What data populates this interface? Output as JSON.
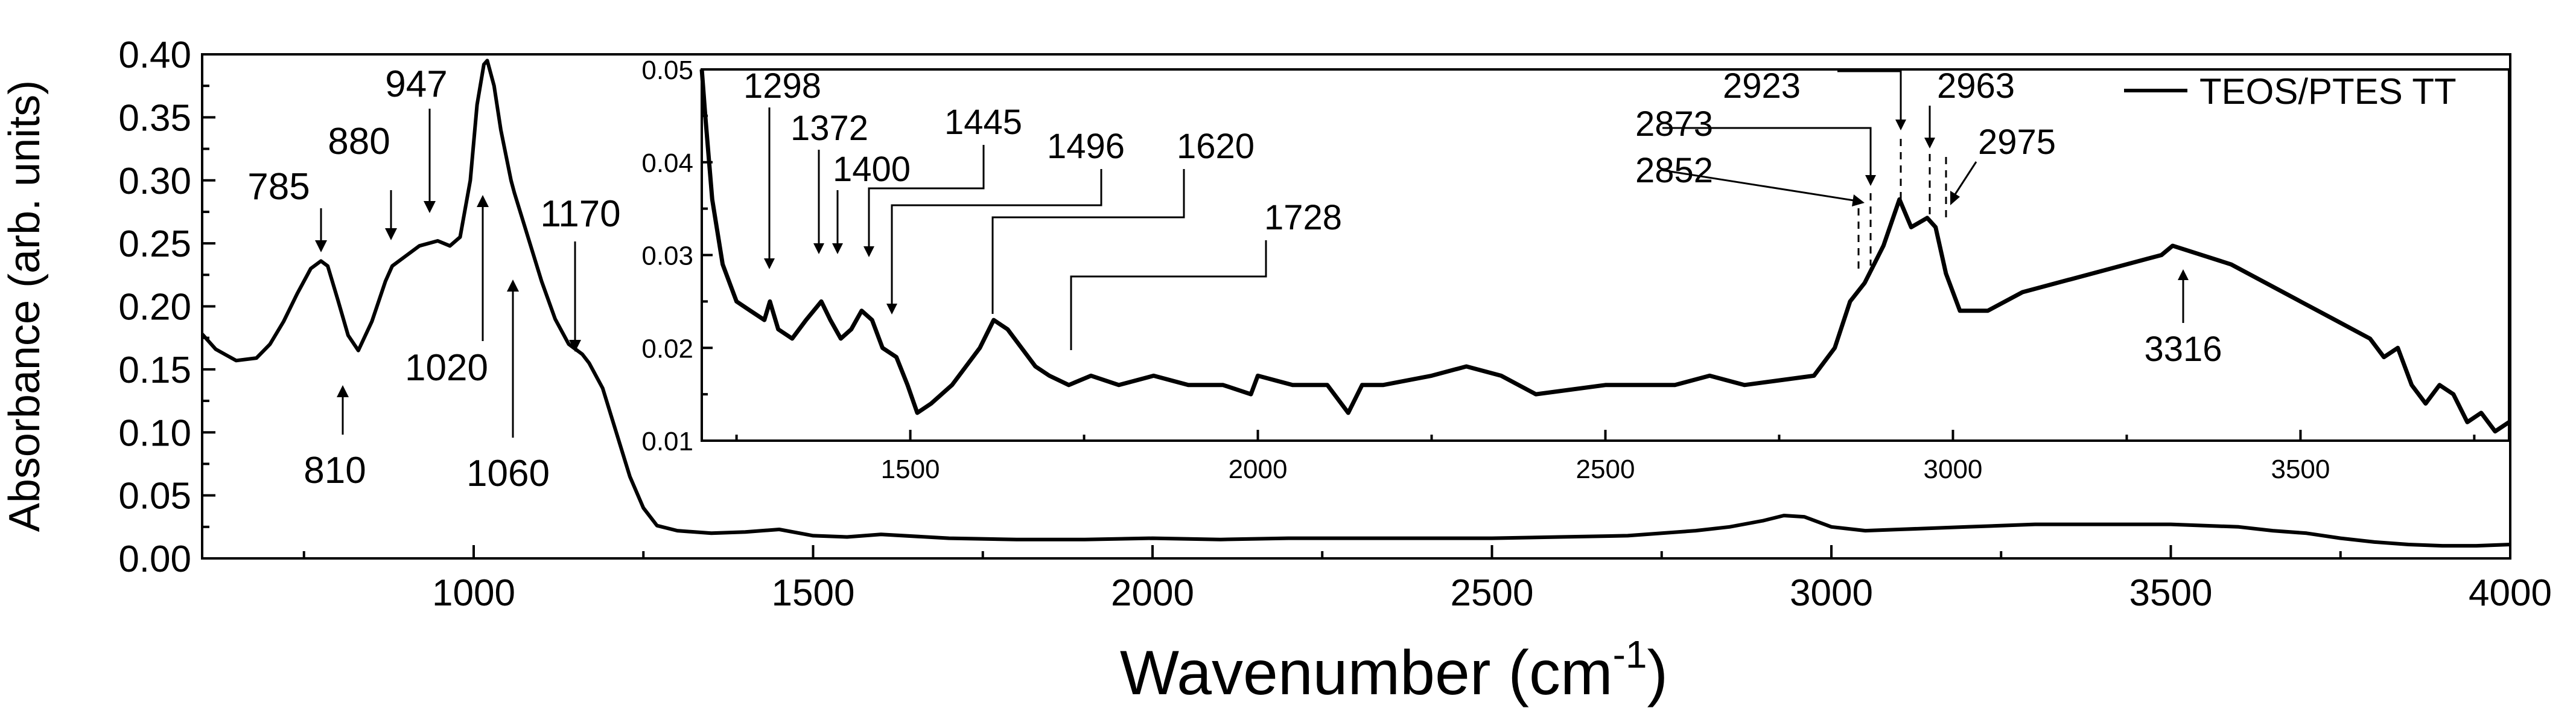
{
  "chart_data": {
    "type": "line",
    "xlabel": "Wavenumber (cm",
    "xlabel_sup": "-1",
    "xlabel_end": ")",
    "ylabel": "Absorbance (arb. units)",
    "xlim": [
      600,
      4000
    ],
    "ylim": [
      0.0,
      0.4
    ],
    "xticks": [
      "1000",
      "1500",
      "2000",
      "2500",
      "3000",
      "3500",
      "4000"
    ],
    "yticks": [
      "0.00",
      "0.05",
      "0.10",
      "0.15",
      "0.20",
      "0.25",
      "0.30",
      "0.35",
      "0.40"
    ],
    "legend": {
      "position": "top-right",
      "label": "TEOS/PTES TT"
    },
    "series": [
      {
        "name": "TEOS/PTES TT",
        "x": [
          600,
          620,
          650,
          680,
          700,
          720,
          740,
          760,
          775,
          785,
          800,
          815,
          830,
          850,
          870,
          880,
          900,
          920,
          947,
          965,
          980,
          995,
          1005,
          1015,
          1020,
          1030,
          1040,
          1055,
          1060,
          1080,
          1100,
          1120,
          1140,
          1160,
          1170,
          1190,
          1210,
          1230,
          1250,
          1270,
          1300,
          1350,
          1400,
          1450,
          1500,
          1550,
          1600,
          1700,
          1800,
          1900,
          2000,
          2100,
          2200,
          2300,
          2400,
          2500,
          2600,
          2700,
          2800,
          2850,
          2900,
          2930,
          2960,
          3000,
          3050,
          3100,
          3200,
          3300,
          3400,
          3500,
          3600,
          3650,
          3700,
          3750,
          3800,
          3850,
          3900,
          3950,
          4000
        ],
        "y": [
          0.178,
          0.166,
          0.157,
          0.159,
          0.17,
          0.188,
          0.21,
          0.23,
          0.236,
          0.232,
          0.205,
          0.177,
          0.165,
          0.188,
          0.22,
          0.232,
          0.24,
          0.248,
          0.252,
          0.248,
          0.255,
          0.3,
          0.36,
          0.392,
          0.395,
          0.375,
          0.34,
          0.3,
          0.29,
          0.255,
          0.22,
          0.19,
          0.17,
          0.162,
          0.155,
          0.135,
          0.1,
          0.065,
          0.04,
          0.026,
          0.022,
          0.02,
          0.021,
          0.023,
          0.018,
          0.017,
          0.019,
          0.016,
          0.015,
          0.015,
          0.016,
          0.015,
          0.016,
          0.016,
          0.016,
          0.016,
          0.017,
          0.018,
          0.022,
          0.025,
          0.03,
          0.034,
          0.033,
          0.025,
          0.022,
          0.023,
          0.025,
          0.027,
          0.027,
          0.027,
          0.025,
          0.022,
          0.02,
          0.016,
          0.013,
          0.011,
          0.01,
          0.01,
          0.011
        ]
      }
    ],
    "annotations": [
      {
        "label": "785",
        "x": 785
      },
      {
        "label": "810",
        "x": 810
      },
      {
        "label": "880",
        "x": 880
      },
      {
        "label": "947",
        "x": 947
      },
      {
        "label": "1020",
        "x": 1020
      },
      {
        "label": "1060",
        "x": 1060
      },
      {
        "label": "1170",
        "x": 1170
      }
    ],
    "inset": {
      "type": "line",
      "xlim": [
        1200,
        3800
      ],
      "ylim": [
        0.01,
        0.05
      ],
      "xticks": [
        "1500",
        "2000",
        "2500",
        "3000",
        "3500"
      ],
      "yticks": [
        "0.01",
        "0.02",
        "0.03",
        "0.04",
        "0.05"
      ],
      "series": {
        "x": [
          1200,
          1205,
          1215,
          1230,
          1250,
          1270,
          1290,
          1298,
          1310,
          1330,
          1350,
          1372,
          1385,
          1400,
          1415,
          1430,
          1445,
          1460,
          1480,
          1496,
          1510,
          1530,
          1560,
          1600,
          1620,
          1640,
          1660,
          1680,
          1700,
          1728,
          1760,
          1800,
          1850,
          1900,
          1950,
          1990,
          2000,
          2050,
          2100,
          2130,
          2150,
          2180,
          2250,
          2300,
          2350,
          2400,
          2500,
          2600,
          2650,
          2700,
          2800,
          2830,
          2852,
          2873,
          2900,
          2923,
          2940,
          2963,
          2975,
          2990,
          3010,
          3050,
          3100,
          3200,
          3300,
          3316,
          3400,
          3450,
          3500,
          3550,
          3600,
          3620,
          3640,
          3660,
          3680,
          3700,
          3720,
          3740,
          3760,
          3780,
          3800
        ],
        "y": [
          0.05,
          0.045,
          0.036,
          0.029,
          0.025,
          0.024,
          0.023,
          0.025,
          0.022,
          0.021,
          0.023,
          0.025,
          0.023,
          0.021,
          0.022,
          0.024,
          0.023,
          0.02,
          0.019,
          0.016,
          0.013,
          0.014,
          0.016,
          0.02,
          0.023,
          0.022,
          0.02,
          0.018,
          0.017,
          0.016,
          0.017,
          0.016,
          0.017,
          0.016,
          0.016,
          0.015,
          0.017,
          0.016,
          0.016,
          0.013,
          0.016,
          0.016,
          0.017,
          0.018,
          0.017,
          0.015,
          0.016,
          0.016,
          0.017,
          0.016,
          0.017,
          0.02,
          0.025,
          0.027,
          0.031,
          0.036,
          0.033,
          0.034,
          0.033,
          0.028,
          0.024,
          0.024,
          0.026,
          0.028,
          0.03,
          0.031,
          0.029,
          0.027,
          0.025,
          0.023,
          0.021,
          0.019,
          0.02,
          0.016,
          0.014,
          0.016,
          0.015,
          0.012,
          0.013,
          0.011,
          0.012
        ]
      },
      "annotations": [
        {
          "label": "1298",
          "x": 1298
        },
        {
          "label": "1372",
          "x": 1372
        },
        {
          "label": "1400",
          "x": 1400
        },
        {
          "label": "1445",
          "x": 1445
        },
        {
          "label": "1496",
          "x": 1496
        },
        {
          "label": "1620",
          "x": 1620
        },
        {
          "label": "1728",
          "x": 1728
        },
        {
          "label": "2852",
          "x": 2852
        },
        {
          "label": "2873",
          "x": 2873
        },
        {
          "label": "2923",
          "x": 2923
        },
        {
          "label": "2963",
          "x": 2963
        },
        {
          "label": "2975",
          "x": 2975
        },
        {
          "label": "3316",
          "x": 3316
        }
      ]
    }
  }
}
